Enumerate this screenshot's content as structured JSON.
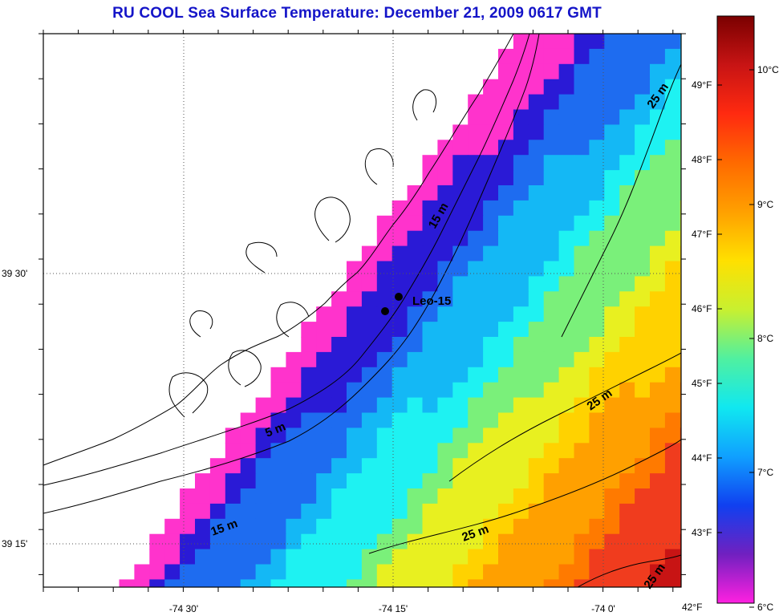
{
  "title": "RU COOL  Sea Surface Temperature:  December 21, 2009 0617 GMT",
  "map": {
    "lat_labels": [
      "39 30'",
      "39 15'"
    ],
    "lon_labels": [
      "-74 30'",
      "-74 15'",
      "-74 0'"
    ],
    "station": "Leo-15",
    "contour_labels": [
      "5 m",
      "15 m",
      "15 m",
      "25 m",
      "25 m",
      "25 m",
      "25 m"
    ],
    "sst_palette": [
      "#ff33cc",
      "#2a1ad6",
      "#1e6cf0",
      "#14b8f5",
      "#1ef2f2",
      "#7af07a",
      "#e8f020",
      "#ffd200",
      "#ffa000",
      "#ff7a00",
      "#f03c1e",
      "#c81414"
    ]
  },
  "colorbar": {
    "celsius_labels": [
      "10°C",
      "9°C",
      "8°C",
      "7°C",
      "6°C"
    ],
    "fahrenheit_labels": [
      "49°F",
      "48°F",
      "47°F",
      "46°F",
      "45°F",
      "44°F",
      "43°F",
      "42°F"
    ],
    "gradient_colors": [
      "#7a0000",
      "#c81414",
      "#ff2a10",
      "#ff6a00",
      "#ffa000",
      "#ffe000",
      "#c8f030",
      "#50f0a0",
      "#10e8f0",
      "#10a0ff",
      "#1040f0",
      "#7020c0",
      "#ff20e0"
    ]
  }
}
